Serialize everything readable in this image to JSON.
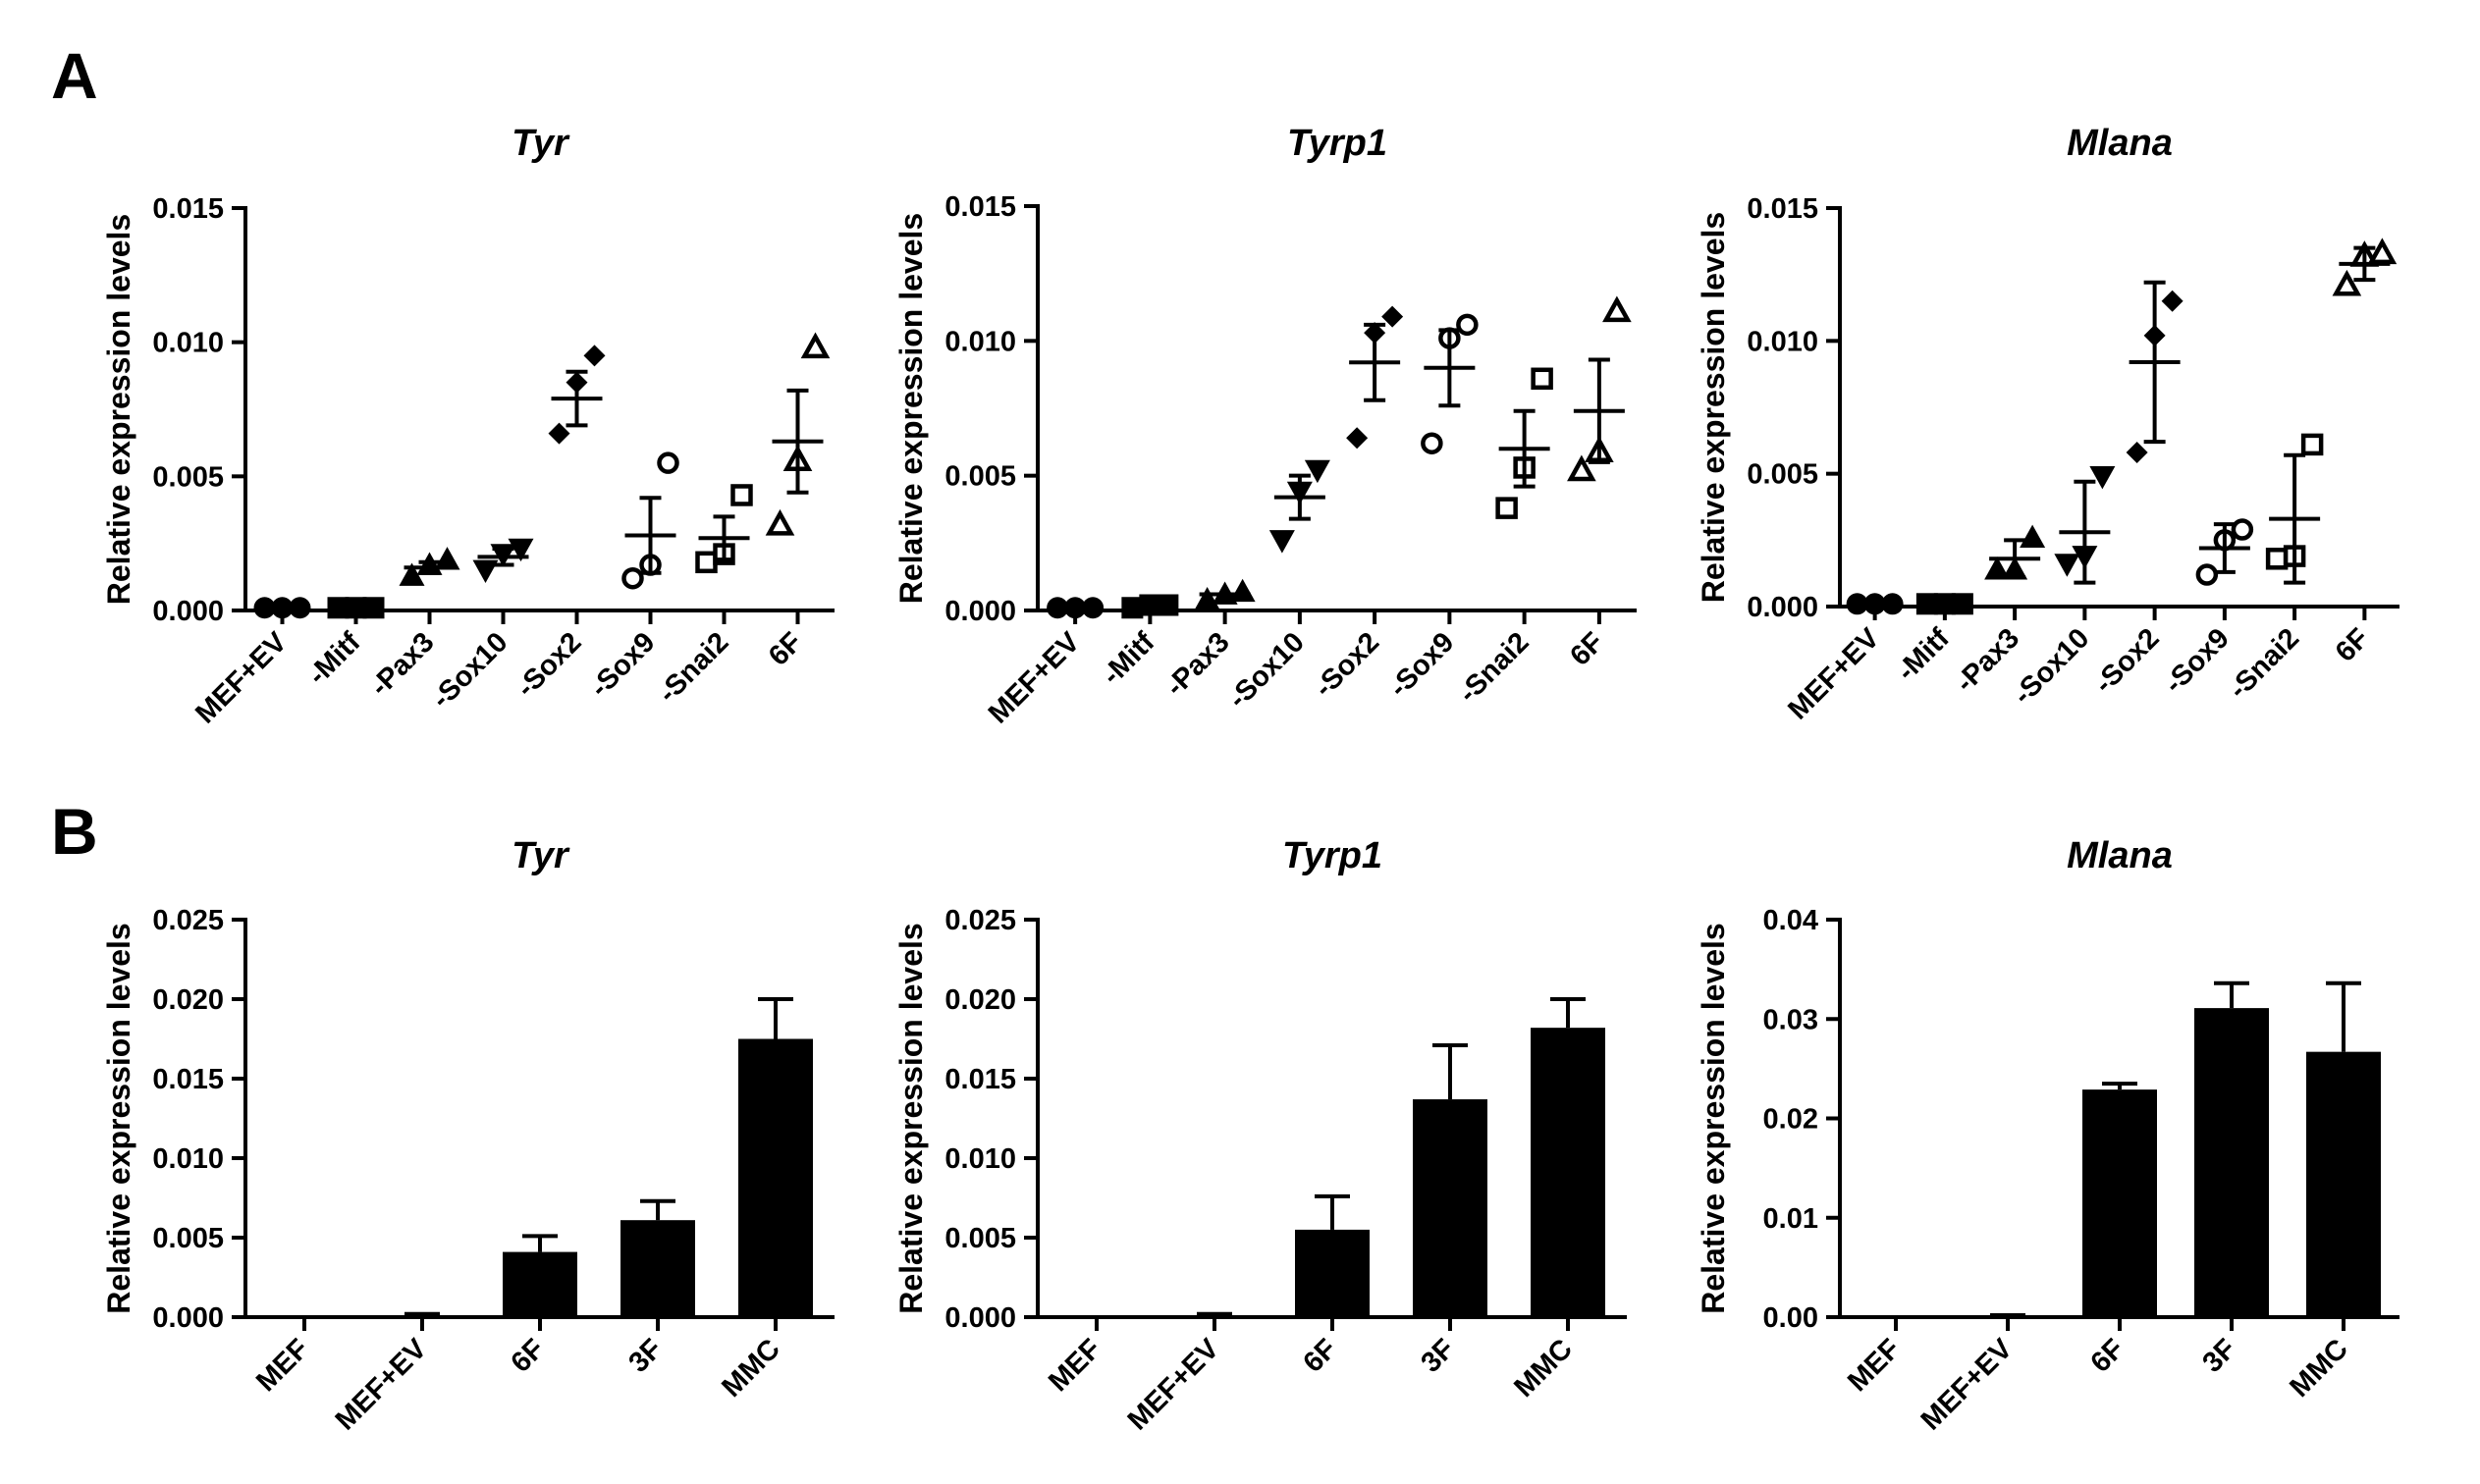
{
  "figure": {
    "panel_a_letter": "A",
    "panel_b_letter": "B"
  },
  "colors": {
    "ink": "#000000",
    "background": "#ffffff"
  },
  "chart_data": [
    {
      "id": "a-tyr",
      "panel": "A",
      "type": "scatter",
      "title": "Tyr",
      "xlabel": "",
      "ylabel": "Relative expression levels",
      "ylim": [
        0,
        0.015
      ],
      "ticks": [
        0,
        0.005,
        0.01,
        0.015
      ],
      "tick_labels": [
        "0.000",
        "0.005",
        "0.010",
        "0.015"
      ],
      "categories": [
        "MEF+EV",
        "-Mitf",
        "-Pax3",
        "-Sox10",
        "-Sox2",
        "-Sox9",
        "-Snai2",
        "6F"
      ],
      "markers": [
        "circle",
        "square",
        "triangle",
        "triangle-down",
        "diamond",
        "circle-open",
        "square-open",
        "triangle-open"
      ],
      "points": [
        [
          0.0001,
          0.0001,
          0.0001
        ],
        [
          0.0001,
          0.0001,
          0.0001
        ],
        [
          0.0013,
          0.0017,
          0.0019
        ],
        [
          0.0015,
          0.0021,
          0.0023
        ],
        [
          0.0066,
          0.0085,
          0.0095
        ],
        [
          0.0012,
          0.0017,
          0.0055
        ],
        [
          0.0018,
          0.0021,
          0.0043
        ],
        [
          0.0032,
          0.0056,
          0.0098
        ]
      ],
      "mean": [
        0.0001,
        0.0001,
        0.0016,
        0.002,
        0.0079,
        0.0028,
        0.0027,
        0.0063
      ],
      "sem": [
        2e-05,
        2e-05,
        0.0002,
        0.0003,
        0.001,
        0.0014,
        0.0008,
        0.0019
      ]
    },
    {
      "id": "a-tyrp1",
      "panel": "A",
      "type": "scatter",
      "title": "Tyrp1",
      "xlabel": "",
      "ylabel": "Relative expression levels",
      "ylim": [
        0,
        0.015
      ],
      "ticks": [
        0,
        0.005,
        0.01,
        0.015
      ],
      "tick_labels": [
        "0.000",
        "0.005",
        "0.010",
        "0.015"
      ],
      "categories": [
        "MEF+EV",
        "-Mitf",
        "-Pax3",
        "-Sox10",
        "-Sox2",
        "-Sox9",
        "-Snai2",
        "6F"
      ],
      "markers": [
        "circle",
        "square",
        "triangle",
        "triangle-down",
        "diamond",
        "circle-open",
        "square-open",
        "triangle-open"
      ],
      "points": [
        [
          0.0001,
          0.0001,
          0.0001
        ],
        [
          0.0001,
          0.0002,
          0.0002
        ],
        [
          0.0004,
          0.0006,
          0.0007
        ],
        [
          0.0026,
          0.0044,
          0.0052
        ],
        [
          0.0064,
          0.0103,
          0.0109
        ],
        [
          0.0062,
          0.0101,
          0.0106
        ],
        [
          0.0038,
          0.0053,
          0.0086
        ],
        [
          0.0052,
          0.0059,
          0.0111
        ]
      ],
      "mean": [
        0.0001,
        0.00015,
        0.0006,
        0.0042,
        0.0092,
        0.009,
        0.006,
        0.0074
      ],
      "sem": [
        2e-05,
        4e-05,
        0.0001,
        0.0008,
        0.0014,
        0.0014,
        0.0014,
        0.0019
      ]
    },
    {
      "id": "a-mlana",
      "panel": "A",
      "type": "scatter",
      "title": "Mlana",
      "xlabel": "",
      "ylabel": "Relative expression levels",
      "ylim": [
        0,
        0.015
      ],
      "ticks": [
        0,
        0.005,
        0.01,
        0.015
      ],
      "tick_labels": [
        "0.000",
        "0.005",
        "0.010",
        "0.015"
      ],
      "categories": [
        "MEF+EV",
        "-Mitf",
        "-Pax3",
        "-Sox10",
        "-Sox2",
        "-Sox9",
        "-Snai2",
        "6F"
      ],
      "markers": [
        "circle",
        "square",
        "triangle",
        "triangle-down",
        "diamond",
        "circle-open",
        "square-open",
        "triangle-open"
      ],
      "points": [
        [
          0.0001,
          0.0001,
          0.0001
        ],
        [
          0.0001,
          0.0001,
          0.0001
        ],
        [
          0.0014,
          0.0014,
          0.0026
        ],
        [
          0.0016,
          0.0019,
          0.0049
        ],
        [
          0.0058,
          0.0102,
          0.0115
        ],
        [
          0.0012,
          0.0025,
          0.0029
        ],
        [
          0.0018,
          0.0019,
          0.0061
        ],
        [
          0.0121,
          0.0132,
          0.0133
        ]
      ],
      "mean": [
        0.0001,
        0.0001,
        0.0018,
        0.0028,
        0.0092,
        0.0022,
        0.0033,
        0.0129
      ],
      "sem": [
        2e-05,
        2e-05,
        0.0007,
        0.0019,
        0.003,
        0.0009,
        0.0024,
        0.0006
      ]
    },
    {
      "id": "b-tyr",
      "panel": "B",
      "type": "bar",
      "title": "Tyr",
      "xlabel": "",
      "ylabel": "Relative expression levels",
      "ylim": [
        0,
        0.025
      ],
      "ticks": [
        0,
        0.005,
        0.01,
        0.015,
        0.02,
        0.025
      ],
      "tick_labels": [
        "0.000",
        "0.005",
        "0.010",
        "0.015",
        "0.020",
        "0.025"
      ],
      "categories": [
        "MEF",
        "MEF+EV",
        "6F",
        "3F",
        "MMC"
      ],
      "values": [
        0.0,
        0.0001,
        0.0041,
        0.0061,
        0.0175
      ],
      "error": [
        0.0,
        0.0001,
        0.001,
        0.0012,
        0.0025
      ]
    },
    {
      "id": "b-tyrp1",
      "panel": "B",
      "type": "bar",
      "title": "Tyrp1",
      "xlabel": "",
      "ylabel": "Relative expression levels",
      "ylim": [
        0,
        0.025
      ],
      "ticks": [
        0,
        0.005,
        0.01,
        0.015,
        0.02,
        0.025
      ],
      "tick_labels": [
        "0.000",
        "0.005",
        "0.010",
        "0.015",
        "0.020",
        "0.025"
      ],
      "categories": [
        "MEF",
        "MEF+EV",
        "6F",
        "3F",
        "MMC"
      ],
      "values": [
        0.0,
        0.0001,
        0.0055,
        0.0137,
        0.0182
      ],
      "error": [
        0.0,
        0.0001,
        0.0021,
        0.0034,
        0.0018
      ]
    },
    {
      "id": "b-mlana",
      "panel": "B",
      "type": "bar",
      "title": "Mlana",
      "xlabel": "",
      "ylabel": "Relative expression levels",
      "ylim": [
        0,
        0.04
      ],
      "ticks": [
        0,
        0.01,
        0.02,
        0.03,
        0.04
      ],
      "tick_labels": [
        "0.00",
        "0.01",
        "0.02",
        "0.03",
        "0.04"
      ],
      "categories": [
        "MEF",
        "MEF+EV",
        "6F",
        "3F",
        "MMC"
      ],
      "values": [
        0.0,
        0.0001,
        0.0229,
        0.0311,
        0.0267
      ],
      "error": [
        0.0,
        0.0001,
        0.0006,
        0.0025,
        0.0069
      ]
    }
  ]
}
